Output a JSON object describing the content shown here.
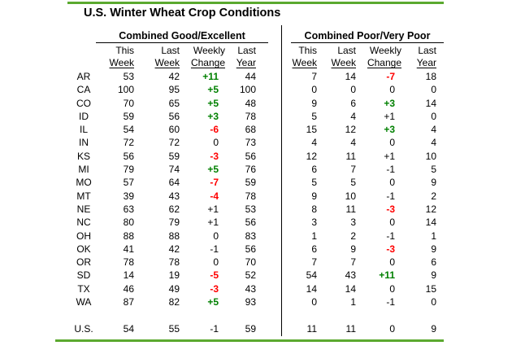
{
  "title": "U.S. Winter Wheat Crop Conditions",
  "colors": {
    "accent_line": "#5BA92F",
    "positive_change": "#008000",
    "negative_change": "#FF0000",
    "text": "#000000"
  },
  "chart_data": {
    "type": "table",
    "title": "U.S. Winter Wheat Crop Conditions",
    "group_headers": [
      "Combined Good/Excellent",
      "Combined Poor/Very Poor"
    ],
    "sub_columns": [
      "This Week",
      "Last Week",
      "Weekly Change",
      "Last Year"
    ],
    "column_header_line1": [
      "This",
      "Last",
      "Weekly",
      "Last"
    ],
    "column_header_line2": [
      "Week",
      "Week",
      "Change",
      "Year"
    ],
    "rows": [
      {
        "state": "AR",
        "good_excellent": [
          "53",
          "42",
          "+11",
          "44"
        ],
        "poor_very_poor": [
          "7",
          "14",
          "-7",
          "18"
        ]
      },
      {
        "state": "CA",
        "good_excellent": [
          "100",
          "95",
          "+5",
          "100"
        ],
        "poor_very_poor": [
          "0",
          "0",
          "0",
          "0"
        ]
      },
      {
        "state": "CO",
        "good_excellent": [
          "70",
          "65",
          "+5",
          "48"
        ],
        "poor_very_poor": [
          "9",
          "6",
          "+3",
          "14"
        ]
      },
      {
        "state": "ID",
        "good_excellent": [
          "59",
          "56",
          "+3",
          "78"
        ],
        "poor_very_poor": [
          "5",
          "4",
          "+1",
          "0"
        ]
      },
      {
        "state": "IL",
        "good_excellent": [
          "54",
          "60",
          "-6",
          "68"
        ],
        "poor_very_poor": [
          "15",
          "12",
          "+3",
          "4"
        ]
      },
      {
        "state": "IN",
        "good_excellent": [
          "72",
          "72",
          "0",
          "73"
        ],
        "poor_very_poor": [
          "4",
          "4",
          "0",
          "4"
        ]
      },
      {
        "state": "KS",
        "good_excellent": [
          "56",
          "59",
          "-3",
          "56"
        ],
        "poor_very_poor": [
          "12",
          "11",
          "+1",
          "10"
        ]
      },
      {
        "state": "MI",
        "good_excellent": [
          "79",
          "74",
          "+5",
          "76"
        ],
        "poor_very_poor": [
          "6",
          "7",
          "-1",
          "5"
        ]
      },
      {
        "state": "MO",
        "good_excellent": [
          "57",
          "64",
          "-7",
          "59"
        ],
        "poor_very_poor": [
          "5",
          "5",
          "0",
          "9"
        ]
      },
      {
        "state": "MT",
        "good_excellent": [
          "39",
          "43",
          "-4",
          "78"
        ],
        "poor_very_poor": [
          "9",
          "10",
          "-1",
          "2"
        ]
      },
      {
        "state": "NE",
        "good_excellent": [
          "63",
          "62",
          "+1",
          "53"
        ],
        "poor_very_poor": [
          "8",
          "11",
          "-3",
          "12"
        ]
      },
      {
        "state": "NC",
        "good_excellent": [
          "80",
          "79",
          "+1",
          "56"
        ],
        "poor_very_poor": [
          "3",
          "3",
          "0",
          "14"
        ]
      },
      {
        "state": "OH",
        "good_excellent": [
          "88",
          "88",
          "0",
          "83"
        ],
        "poor_very_poor": [
          "1",
          "2",
          "-1",
          "1"
        ]
      },
      {
        "state": "OK",
        "good_excellent": [
          "41",
          "42",
          "-1",
          "56"
        ],
        "poor_very_poor": [
          "6",
          "9",
          "-3",
          "9"
        ]
      },
      {
        "state": "OR",
        "good_excellent": [
          "78",
          "78",
          "0",
          "70"
        ],
        "poor_very_poor": [
          "7",
          "7",
          "0",
          "6"
        ]
      },
      {
        "state": "SD",
        "good_excellent": [
          "14",
          "19",
          "-5",
          "52"
        ],
        "poor_very_poor": [
          "54",
          "43",
          "+11",
          "9"
        ]
      },
      {
        "state": "TX",
        "good_excellent": [
          "46",
          "49",
          "-3",
          "43"
        ],
        "poor_very_poor": [
          "14",
          "14",
          "0",
          "15"
        ]
      },
      {
        "state": "WA",
        "good_excellent": [
          "87",
          "82",
          "+5",
          "93"
        ],
        "poor_very_poor": [
          "0",
          "1",
          "-1",
          "0"
        ]
      }
    ],
    "total_row": {
      "state": "U.S.",
      "good_excellent": [
        "54",
        "55",
        "-1",
        "59"
      ],
      "poor_very_poor": [
        "11",
        "11",
        "0",
        "9"
      ]
    }
  }
}
